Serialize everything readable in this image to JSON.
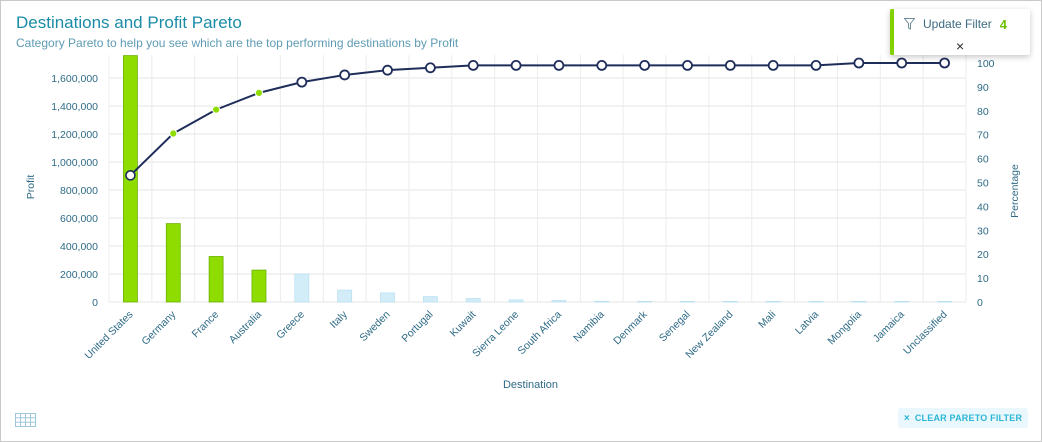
{
  "header": {
    "title": "Destinations and Profit Pareto",
    "subtitle": "Category Pareto to help you see which are the top performing destinations by Profit"
  },
  "filter_popup": {
    "label": "Update Filter",
    "count": "4",
    "close": "×"
  },
  "footer": {
    "clear_label": "CLEAR PARETO FILTER",
    "clear_icon": "×"
  },
  "colors": {
    "bar_selected": "#8fdd00",
    "bar_unselected": "#d3edf8",
    "line": "#1f2d5a",
    "accent": "#84d100",
    "title": "#1b8ca6"
  },
  "chart_data": {
    "type": "bar",
    "xlabel": "Destination",
    "ylabel": "Profit",
    "y2label": "Percentage",
    "ylim": [
      0,
      1750000
    ],
    "y_ticks": [
      "0",
      "200,000",
      "400,000",
      "600,000",
      "800,000",
      "1,000,000",
      "1,200,000",
      "1,400,000",
      "1,600,000"
    ],
    "y_tick_values": [
      0,
      200000,
      400000,
      600000,
      800000,
      1000000,
      1200000,
      1400000,
      1600000
    ],
    "y2lim": [
      0,
      100
    ],
    "y2_ticks": [
      "0",
      "10",
      "20",
      "30",
      "40",
      "50",
      "60",
      "70",
      "80",
      "90",
      "100"
    ],
    "y2_tick_values": [
      0,
      10,
      20,
      30,
      40,
      50,
      60,
      70,
      80,
      90,
      100
    ],
    "categories": [
      "United States",
      "Germany",
      "France",
      "Australia",
      "Greece",
      "Italy",
      "Sweden",
      "Portugal",
      "Kuwait",
      "Sierra Leone",
      "South Africa",
      "Namibia",
      "Denmark",
      "Senegal",
      "New Zealand",
      "Mali",
      "Latvia",
      "Mongolia",
      "Jamaica",
      "Unclassified"
    ],
    "series": [
      {
        "name": "Profit",
        "type": "bar",
        "values": [
          1760000,
          560000,
          325000,
          228000,
          200000,
          85000,
          65000,
          38000,
          25000,
          15000,
          10000,
          5000,
          4000,
          3000,
          2500,
          2000,
          1500,
          1000,
          800,
          500
        ]
      },
      {
        "name": "Percentage",
        "type": "line",
        "values": [
          53,
          70.5,
          80.5,
          87.5,
          92,
          95,
          97,
          98,
          99,
          99,
          99,
          99,
          99,
          99,
          99,
          99,
          99,
          100,
          100,
          100
        ]
      }
    ],
    "selected": [
      "United States",
      "Germany",
      "France",
      "Australia"
    ],
    "grid": true,
    "legend": "none"
  }
}
